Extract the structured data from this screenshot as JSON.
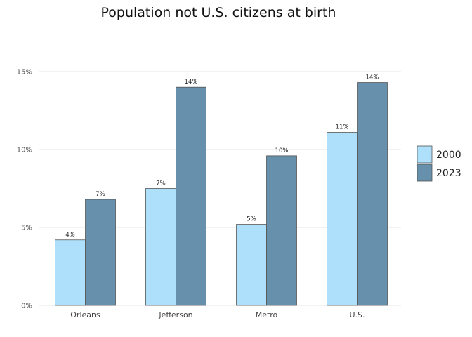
{
  "chart_data": {
    "type": "bar",
    "title": "Population not U.S. citizens at birth",
    "xlabel": "",
    "ylabel": "",
    "categories": [
      "Orleans",
      "Jefferson",
      "Metro",
      "U.S."
    ],
    "series": [
      {
        "name": "2000",
        "values": [
          4.2,
          7.5,
          5.2,
          11.1
        ],
        "labels": [
          "4%",
          "7%",
          "5%",
          "11%"
        ],
        "color": "#aee0fb"
      },
      {
        "name": "2023",
        "values": [
          6.8,
          14.0,
          9.6,
          14.3
        ],
        "labels": [
          "7%",
          "14%",
          "10%",
          "14%"
        ],
        "color": "#6690ab"
      }
    ],
    "ylim": [
      0,
      15
    ],
    "yticks": [
      0,
      5,
      10,
      15
    ],
    "ytick_labels": [
      "0%",
      "5%",
      "10%",
      "15%"
    ],
    "grid": true,
    "legend_position": "right"
  }
}
